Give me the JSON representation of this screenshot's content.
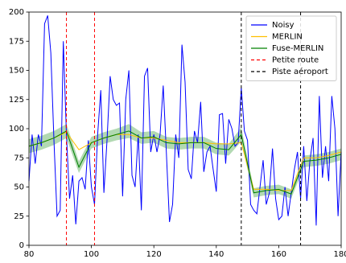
{
  "chart_data": {
    "type": "line",
    "xlim": [
      80,
      180
    ],
    "xticks": [
      80,
      100,
      120,
      140,
      160,
      180
    ],
    "ylim": [
      0,
      200
    ],
    "yticks": [
      0,
      25,
      50,
      75,
      100,
      125,
      150,
      175,
      200
    ],
    "legend": "upper right",
    "series": [
      {
        "name": "Noisy",
        "color": "#0000ff",
        "x": [
          80,
          81,
          82,
          83,
          84,
          85,
          86,
          87,
          88,
          89,
          90,
          91,
          92,
          93,
          94,
          95,
          96,
          97,
          98,
          99,
          100,
          101,
          102,
          103,
          104,
          105,
          106,
          107,
          108,
          109,
          110,
          111,
          112,
          113,
          114,
          115,
          116,
          117,
          118,
          119,
          120,
          121,
          122,
          123,
          124,
          125,
          126,
          127,
          128,
          129,
          130,
          131,
          132,
          133,
          134,
          135,
          136,
          137,
          138,
          139,
          140,
          141,
          142,
          143,
          144,
          145,
          146,
          147,
          148,
          149,
          150,
          151,
          152,
          153,
          154,
          155,
          156,
          157,
          158,
          159,
          160,
          161,
          162,
          163,
          164,
          165,
          166,
          167,
          168,
          169,
          170,
          171,
          172,
          173,
          174,
          175,
          176,
          177,
          178,
          179,
          180
        ],
        "values": [
          55,
          95,
          70,
          95,
          85,
          190,
          197,
          165,
          90,
          25,
          30,
          175,
          95,
          40,
          60,
          18,
          55,
          58,
          48,
          90,
          50,
          35,
          95,
          133,
          45,
          90,
          145,
          125,
          120,
          122,
          42,
          125,
          150,
          60,
          50,
          95,
          30,
          145,
          152,
          80,
          95,
          80,
          95,
          137,
          80,
          20,
          35,
          95,
          75,
          172,
          140,
          65,
          57,
          98,
          88,
          123,
          63,
          80,
          85,
          65,
          46,
          112,
          113,
          70,
          108,
          100,
          85,
          88,
          135,
          98,
          90,
          35,
          30,
          27,
          50,
          73,
          35,
          45,
          83,
          40,
          22,
          25,
          50,
          25,
          45,
          65,
          80,
          40,
          85,
          38,
          73,
          92,
          17,
          128,
          58,
          85,
          55,
          128,
          100,
          25,
          80
        ]
      },
      {
        "name": "MERLIN",
        "color": "#ffbf00",
        "x": [
          80,
          84,
          88,
          92,
          96,
          100,
          104,
          108,
          112,
          116,
          120,
          124,
          128,
          132,
          136,
          140,
          144,
          148,
          152,
          156,
          160,
          164,
          168,
          172,
          176,
          180
        ],
        "values": [
          85,
          88,
          92,
          97,
          82,
          88,
          92,
          95,
          95,
          92,
          92,
          90,
          88,
          88,
          88,
          87,
          87,
          88,
          48,
          48,
          47,
          47,
          75,
          75,
          77,
          80
        ]
      },
      {
        "name": "Fuse-MERLIN",
        "color": "#008000",
        "x": [
          80,
          84,
          88,
          92,
          96,
          100,
          104,
          108,
          112,
          116,
          120,
          124,
          128,
          132,
          136,
          140,
          144,
          148,
          152,
          156,
          160,
          164,
          168,
          172,
          176,
          180
        ],
        "values": [
          85,
          88,
          92,
          98,
          67,
          88,
          92,
          95,
          98,
          92,
          93,
          88,
          87,
          88,
          88,
          83,
          82,
          95,
          45,
          47,
          48,
          44,
          72,
          73,
          75,
          78
        ],
        "lower": [
          79,
          82,
          86,
          92,
          62,
          83,
          87,
          90,
          92,
          87,
          88,
          83,
          82,
          83,
          83,
          78,
          77,
          89,
          41,
          43,
          44,
          40,
          67,
          68,
          70,
          73
        ],
        "upper": [
          91,
          94,
          98,
          104,
          72,
          93,
          97,
          100,
          104,
          97,
          98,
          93,
          92,
          93,
          93,
          88,
          87,
          101,
          49,
          51,
          52,
          48,
          77,
          78,
          80,
          83
        ]
      }
    ],
    "vlines": [
      {
        "name": "Petite route",
        "color": "#ff0000",
        "x": [
          92,
          101
        ]
      },
      {
        "name": "Piste aéroport",
        "color": "#000000",
        "x": [
          148,
          167
        ]
      }
    ]
  }
}
